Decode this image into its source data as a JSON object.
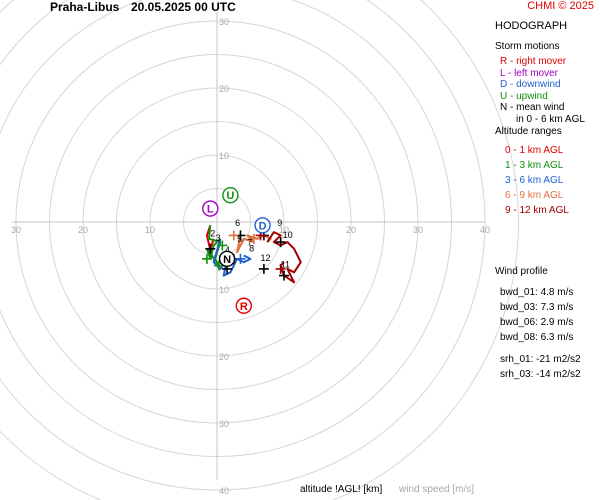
{
  "header": {
    "station": "Praha-Libus",
    "datetime": "20.05.2025 00 UTC",
    "credit": "CHMI © 2025"
  },
  "panel": {
    "title": "HODOGRAPH",
    "storm_motions_title": "Storm motions",
    "storm_motions": [
      {
        "text": "R - right mover",
        "color": "#e00000"
      },
      {
        "text": "L - left mover",
        "color": "#a000c0"
      },
      {
        "text": "D - downwind",
        "color": "#2060d0"
      },
      {
        "text": "U - upwind",
        "color": "#109010"
      },
      {
        "text": "N - mean wind",
        "color": "#000000"
      },
      {
        "text": "in 0 - 6 km AGL",
        "color": "#000000"
      }
    ],
    "altitude_title": "Altitude ranges",
    "altitude_ranges": [
      {
        "text": "0 - 1 km AGL",
        "color": "#e00000"
      },
      {
        "text": "1 - 3 km AGL",
        "color": "#109010"
      },
      {
        "text": "3 - 6 km AGL",
        "color": "#2060d0"
      },
      {
        "text": "6 - 9 km AGL",
        "color": "#e07040"
      },
      {
        "text": "9 - 12 km AGL",
        "color": "#a00000"
      }
    ],
    "wind_profile_title": "Wind profile",
    "wind_profile": [
      "bwd_01: 4.8 m/s",
      "bwd_03: 7.3 m/s",
      "bwd_06: 2.9 m/s",
      "bwd_08: 6.3 m/s"
    ],
    "helicity": [
      "srh_01: -21 m2/s2",
      "srh_03: -14 m2/s2"
    ]
  },
  "bottom": {
    "altitude_label": "altitude !AGL! [km]",
    "speed_label": "wind speed [m/s]"
  },
  "chart_data": {
    "type": "line",
    "title": "HODOGRAPH",
    "rings": [
      10,
      20,
      30,
      40
    ],
    "axis_labels": [
      "10",
      "20",
      "30",
      "40"
    ],
    "series": [
      {
        "color": "#e00000",
        "points": [
          [
            -0.5,
            -2.5
          ],
          [
            -0.8,
            -3.5
          ],
          [
            -1.2,
            -4.5
          ],
          [
            -0.8,
            -5.0
          ],
          [
            -1.5,
            -2.0
          ],
          [
            -1.0,
            -0.5
          ]
        ]
      },
      {
        "color": "#109010",
        "points": [
          [
            -1.0,
            -0.5
          ],
          [
            -1.2,
            -2.5
          ],
          [
            0.5,
            -3.0
          ],
          [
            -0.3,
            -5.5
          ],
          [
            0.3,
            -6.5
          ],
          [
            -1.5,
            -4.0
          ],
          [
            -1.0,
            -5.5
          ],
          [
            -0.5,
            -3.5
          ],
          [
            0.5,
            -2.5
          ]
        ]
      },
      {
        "color": "#2060d0",
        "points": [
          [
            0.5,
            -2.5
          ],
          [
            -0.5,
            -6.0
          ],
          [
            0.5,
            -7.0
          ],
          [
            1.5,
            -5.5
          ],
          [
            1.0,
            -8.0
          ],
          [
            2.0,
            -7.5
          ],
          [
            3.0,
            -5.5
          ],
          [
            4.0,
            -6.0
          ],
          [
            5.0,
            -5.5
          ],
          [
            4.0,
            -5.0
          ]
        ]
      },
      {
        "color": "#e07040",
        "points": [
          [
            3.5,
            -2.0
          ],
          [
            3.0,
            -4.5
          ],
          [
            4.0,
            -2.5
          ],
          [
            5.5,
            -3.0
          ],
          [
            4.5,
            -2.0
          ],
          [
            6.0,
            -2.5
          ],
          [
            7.0,
            -2.0
          ],
          [
            8.0,
            -2.5
          ],
          [
            7.5,
            -3.0
          ]
        ]
      },
      {
        "color": "#a00000",
        "points": [
          [
            7.5,
            -3.0
          ],
          [
            8.5,
            -1.5
          ],
          [
            9.5,
            -2.0
          ],
          [
            8.5,
            -3.0
          ],
          [
            9.5,
            -3.5
          ],
          [
            10.5,
            -3.0
          ],
          [
            11.5,
            -4.0
          ],
          [
            12.5,
            -6.0
          ],
          [
            11.5,
            -7.5
          ],
          [
            10.5,
            -7.0
          ],
          [
            11.5,
            -9.0
          ],
          [
            10.0,
            -8.0
          ],
          [
            9.5,
            -6.5
          ],
          [
            10.0,
            -6.0
          ]
        ]
      }
    ],
    "crosses": [
      {
        "x": 3.5,
        "y": -2.0,
        "color": "#000000"
      },
      {
        "x": 7.0,
        "y": -2.0,
        "color": "#000000"
      },
      {
        "x": 9.5,
        "y": -3.0,
        "color": "#000000"
      },
      {
        "x": 10.0,
        "y": -8.0,
        "color": "#000000"
      },
      {
        "x": 7.0,
        "y": -7.0,
        "color": "#000000"
      },
      {
        "x": 2.5,
        "y": -5.5,
        "color": "#000000"
      },
      {
        "x": 1.5,
        "y": -7.0,
        "color": "#000000"
      },
      {
        "x": -1.0,
        "y": -4.0,
        "color": "#000000"
      },
      {
        "x": -1.5,
        "y": -5.5,
        "color": "#109010"
      },
      {
        "x": 0.8,
        "y": -3.5,
        "color": "#109010"
      },
      {
        "x": 0.3,
        "y": -6.5,
        "color": "#109010"
      },
      {
        "x": 2.5,
        "y": -2.0,
        "color": "#e07040"
      },
      {
        "x": 5.5,
        "y": -2.5,
        "color": "#e07040"
      },
      {
        "x": 6.5,
        "y": -2.0,
        "color": "#a00000"
      },
      {
        "x": 9.5,
        "y": -7.0,
        "color": "#a00000"
      },
      {
        "x": 3.5,
        "y": -5.5,
        "color": "#2060d0"
      }
    ],
    "height_labels": [
      {
        "text": "2",
        "x": -1.0,
        "y": -2.2
      },
      {
        "text": "3",
        "x": -0.2,
        "y": -2.8
      },
      {
        "text": "4",
        "x": 1.2,
        "y": -4.6
      },
      {
        "text": "5",
        "x": 3.0,
        "y": -3.0
      },
      {
        "text": "6",
        "x": 2.7,
        "y": -0.6
      },
      {
        "text": "7",
        "x": 4.5,
        "y": -3.5
      },
      {
        "text": "8",
        "x": 4.8,
        "y": -4.4
      },
      {
        "text": "9",
        "x": 9.0,
        "y": -0.6
      },
      {
        "text": "10",
        "x": 9.8,
        "y": -2.4
      },
      {
        "text": "11",
        "x": 9.5,
        "y": -6.8
      },
      {
        "text": "12",
        "x": 6.5,
        "y": -5.8
      }
    ],
    "storm_markers": [
      {
        "letter": "R",
        "x": 4.0,
        "y": -12.5,
        "color": "#e00000"
      },
      {
        "letter": "L",
        "x": -1.0,
        "y": 2.0,
        "color": "#a000c0"
      },
      {
        "letter": "D",
        "x": 6.8,
        "y": -0.5,
        "color": "#2060d0"
      },
      {
        "letter": "U",
        "x": 2.0,
        "y": 4.0,
        "color": "#109010"
      },
      {
        "letter": "N",
        "x": 1.5,
        "y": -5.5,
        "color": "#000000"
      }
    ]
  }
}
